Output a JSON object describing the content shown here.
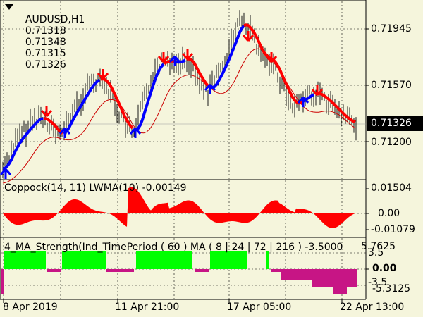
{
  "main_chart": {
    "symbol_label": "AUDUSD,H1",
    "ohlc": [
      "0.71318",
      "0.71348",
      "0.71315",
      "0.71326"
    ],
    "price_axis": [
      "0.71945",
      "0.71570",
      "0.71200"
    ],
    "current_price": "0.71326"
  },
  "coppock_panel": {
    "title": "Coppock(14, 11) LWMA(10) -0.00149",
    "axis": [
      "0.01504",
      "0.00",
      "-0.01079"
    ]
  },
  "ma_strength_panel": {
    "title": "4_MA_Strength(Ind_TimePeriod ( 60 ) MA ( 8 | 24 | 72 | 216 )",
    "value": "-3.5000",
    "axis_top": "5.7625",
    "axis_right_mid": "3.5",
    "axis_zero": "0.00",
    "axis_low_left": "-3.5",
    "axis_bottom": "-5.3125"
  },
  "time_axis": [
    "8 Apr 2019",
    "11 Apr 21:00",
    "17 Apr 05:00",
    "22 Apr 13:00"
  ],
  "colors": {
    "background": "#f5f5dc",
    "up_arrow": "#0000ff",
    "down_arrow": "#ff0000",
    "ma_up": "#0000ff",
    "ma_down": "#ff0000",
    "slow_ma": "#cc0000",
    "coppock_fill": "#ff0000",
    "strength_green": "#00ff00",
    "strength_magenta": "#c71585"
  }
}
